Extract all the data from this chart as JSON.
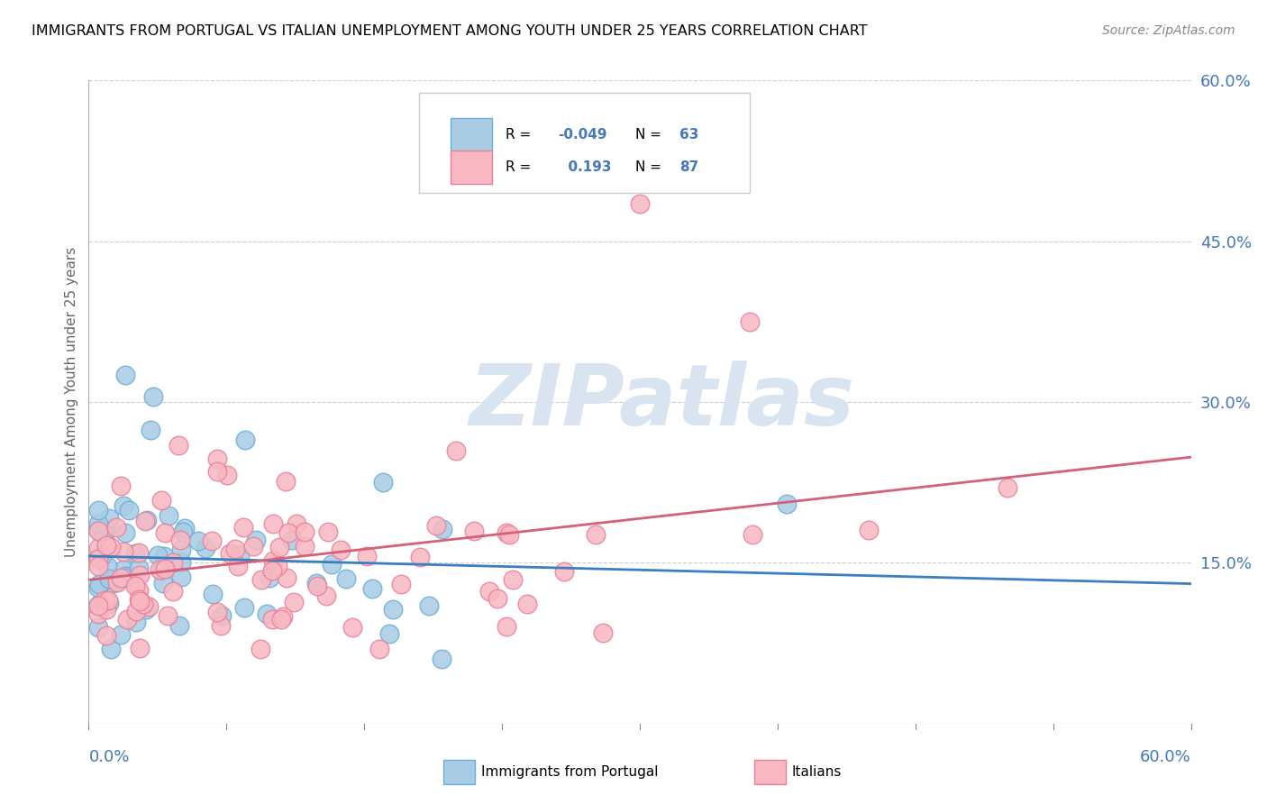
{
  "title": "IMMIGRANTS FROM PORTUGAL VS ITALIAN UNEMPLOYMENT AMONG YOUTH UNDER 25 YEARS CORRELATION CHART",
  "source": "Source: ZipAtlas.com",
  "ylabel": "Unemployment Among Youth under 25 years",
  "legend_blue_r": "-0.049",
  "legend_blue_n": "63",
  "legend_pink_r": "0.193",
  "legend_pink_n": "87",
  "xlim": [
    0.0,
    0.6
  ],
  "ylim": [
    0.0,
    0.6
  ],
  "y_ticks": [
    0.15,
    0.3,
    0.45,
    0.6
  ],
  "y_tick_labels": [
    "15.0%",
    "30.0%",
    "45.0%",
    "60.0%"
  ],
  "blue_scatter_color": "#a8cce4",
  "blue_edge_color": "#6aaed6",
  "pink_scatter_color": "#f9b8c1",
  "pink_edge_color": "#e87f99",
  "blue_line_color": "#3a7fc1",
  "pink_line_color": "#d4607a",
  "watermark_color": "#d8e4f0",
  "watermark_text": "ZIPatlas",
  "axis_label_color": "#4477bb",
  "background_color": "#ffffff"
}
